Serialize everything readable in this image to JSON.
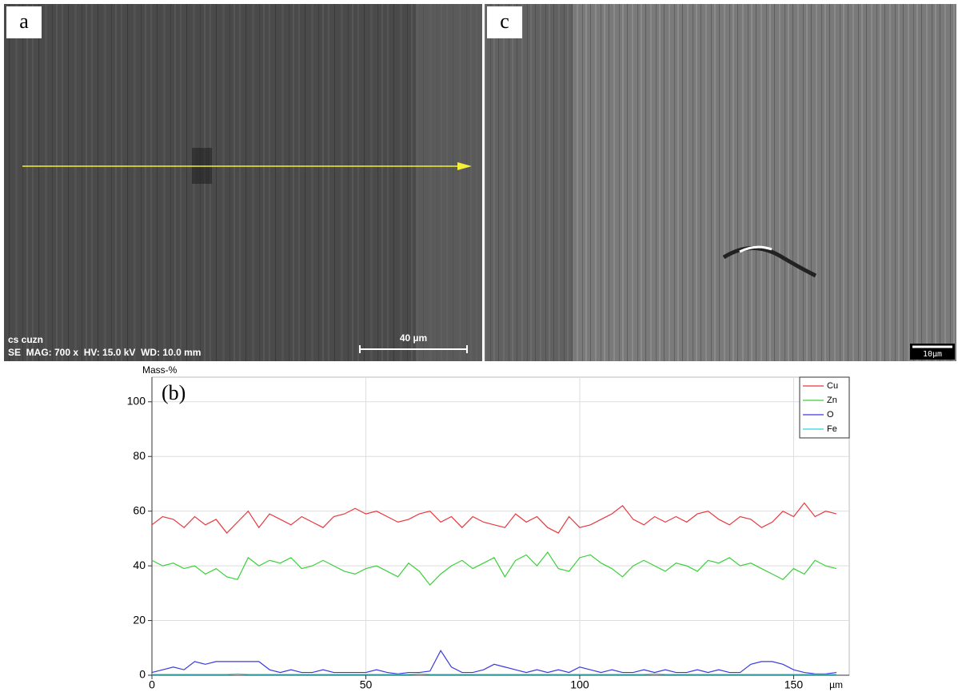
{
  "panels": [
    {
      "label": "a",
      "annotation": "cs cuzn",
      "info": "SE  MAG: 700 x  HV: 15.0 kV  WD: 10.0 mm",
      "scale_bar": "40 µm"
    },
    {
      "label": "c",
      "scale_bar": "10µm"
    }
  ],
  "chart_data": {
    "type": "line",
    "label": "(b)",
    "y_label": "Mass-%",
    "x_label": "µm",
    "xlim": [
      0,
      163
    ],
    "ylim": [
      0,
      109
    ],
    "xticks": [
      0,
      50,
      100,
      150
    ],
    "yticks": [
      0,
      20,
      40,
      60,
      80,
      100
    ],
    "grid": true,
    "legend": "upper right",
    "x": [
      0,
      2.5,
      5,
      7.5,
      10,
      12.5,
      15,
      17.5,
      20,
      22.5,
      25,
      27.5,
      30,
      32.5,
      35,
      37.5,
      40,
      42.5,
      45,
      47.5,
      50,
      52.5,
      55,
      57.5,
      60,
      62.5,
      65,
      67.5,
      70,
      72.5,
      75,
      77.5,
      80,
      82.5,
      85,
      87.5,
      90,
      92.5,
      95,
      97.5,
      100,
      102.5,
      105,
      107.5,
      110,
      112.5,
      115,
      117.5,
      120,
      122.5,
      125,
      127.5,
      130,
      132.5,
      135,
      137.5,
      140,
      142.5,
      145,
      147.5,
      150,
      152.5,
      155,
      157.5,
      160
    ],
    "series": [
      {
        "name": "Cu",
        "color": "#e8383d",
        "values": [
          55,
          58,
          57,
          54,
          58,
          55,
          57,
          52,
          56,
          60,
          54,
          59,
          57,
          55,
          58,
          56,
          54,
          58,
          59,
          61,
          59,
          60,
          58,
          56,
          57,
          59,
          60,
          56,
          58,
          54,
          58,
          56,
          55,
          54,
          59,
          56,
          58,
          54,
          52,
          58,
          54,
          55,
          57,
          59,
          62,
          57,
          55,
          58,
          56,
          58,
          56,
          59,
          60,
          57,
          55,
          58,
          57,
          54,
          56,
          60,
          58,
          63,
          58,
          60,
          59
        ]
      },
      {
        "name": "Zn",
        "color": "#3ad13a",
        "values": [
          42,
          40,
          41,
          39,
          40,
          37,
          39,
          36,
          35,
          43,
          40,
          42,
          41,
          43,
          39,
          40,
          42,
          40,
          38,
          37,
          39,
          40,
          38,
          36,
          41,
          38,
          33,
          37,
          40,
          42,
          39,
          41,
          43,
          36,
          42,
          44,
          40,
          45,
          39,
          38,
          43,
          44,
          41,
          39,
          36,
          40,
          42,
          40,
          38,
          41,
          40,
          38,
          42,
          41,
          43,
          40,
          41,
          39,
          37,
          35,
          39,
          37,
          42,
          40,
          39
        ]
      },
      {
        "name": "O",
        "color": "#3a3ae0",
        "values": [
          1,
          2,
          3,
          2,
          5,
          4,
          5,
          5,
          5,
          5,
          5,
          2,
          1,
          2,
          1,
          1,
          2,
          1,
          1,
          1,
          1,
          2,
          1,
          0.5,
          1,
          1,
          1.5,
          9,
          3,
          1,
          1,
          2,
          4,
          3,
          2,
          1,
          2,
          1,
          2,
          1,
          3,
          2,
          1,
          2,
          1,
          1,
          2,
          1,
          2,
          1,
          1,
          2,
          1,
          2,
          1,
          1,
          4,
          5,
          5,
          4,
          2,
          1,
          0.5,
          0.5,
          1
        ]
      },
      {
        "name": "Fe",
        "color": "#2fd6d6",
        "values": [
          0.3,
          0.3,
          0.3,
          0.3,
          0.3,
          0.3,
          0.3,
          0.3,
          0.5,
          0.3,
          0.3,
          0.3,
          0.3,
          0.3,
          0.3,
          0.3,
          0.3,
          0.3,
          0.3,
          0.3,
          0.3,
          0.3,
          0.3,
          0.3,
          0.3,
          0.5,
          0.3,
          0.3,
          0.3,
          0.3,
          0.3,
          0.3,
          0.3,
          0.3,
          0.3,
          0.3,
          0.3,
          0.3,
          0.3,
          0.3,
          0.3,
          0.3,
          0.3,
          0.3,
          0.3,
          0.3,
          0.3,
          0.5,
          0.3,
          0.3,
          0.3,
          0.3,
          0.3,
          0.3,
          0.3,
          0.3,
          0.3,
          0.3,
          0.3,
          0.3,
          0.3,
          0.3,
          0.3,
          0.3,
          0.3
        ]
      }
    ]
  }
}
